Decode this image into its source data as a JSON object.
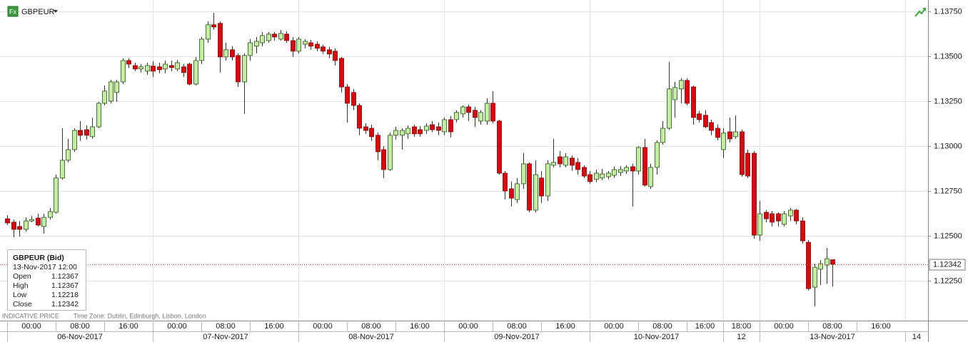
{
  "toolbar": {
    "icon": "Fx",
    "symbol": "GBPEUR"
  },
  "tooltip": {
    "title": "GBPEUR (Bid)",
    "time": "13-Nov-2017 12:00",
    "labels": [
      "Open",
      "High",
      "Low",
      "Close"
    ]
  },
  "footer": {
    "notice": "INDICATIVE PRICE",
    "timezone": "Time Zone: Dublin, Edinburgh, Lisbon, London"
  },
  "chart_data": {
    "type": "candlestick",
    "up_color": "#c4eca2",
    "up_edge": "#2f4f1a",
    "down_color": "#d20a11",
    "down_edge": "#7a0000",
    "last_line_color": "#d04040",
    "grid": true,
    "ylim": [
      1.12028,
      1.13813
    ],
    "yticks": [
      {
        "value": 1.1225,
        "label": "1.12250"
      },
      {
        "value": 1.125,
        "label": "1.12500"
      },
      {
        "value": 1.1275,
        "label": "1.12750"
      },
      {
        "value": 1.13,
        "label": "1.13000"
      },
      {
        "value": 1.1325,
        "label": "1.13250"
      },
      {
        "value": 1.135,
        "label": "1.13500"
      },
      {
        "value": 1.1375,
        "label": "1.13750"
      }
    ],
    "xticks": [
      {
        "value": 0,
        "label": "00:00"
      },
      {
        "value": 8,
        "label": "08:00"
      },
      {
        "value": 16,
        "label": "16:00"
      },
      {
        "value": 24,
        "label": "00:00"
      },
      {
        "value": 32,
        "label": "08:00"
      },
      {
        "value": 40,
        "label": "16:00"
      },
      {
        "value": 48,
        "label": "00:00"
      },
      {
        "value": 56,
        "label": "08:00"
      },
      {
        "value": 64,
        "label": "16:00"
      },
      {
        "value": 72,
        "label": "00:00"
      },
      {
        "value": 80,
        "label": "08:00"
      },
      {
        "value": 88,
        "label": "16:00"
      },
      {
        "value": 96,
        "label": "00:00"
      },
      {
        "value": 104,
        "label": "08:00"
      },
      {
        "value": 112,
        "label": "16:00"
      },
      {
        "value": 118,
        "label": "18:00"
      },
      {
        "value": 124,
        "label": "00:00"
      },
      {
        "value": 132,
        "label": "08:00"
      },
      {
        "value": 140,
        "label": "16:00"
      }
    ],
    "date_ticks": [
      {
        "value": 0,
        "label": "06-Nov-2017"
      },
      {
        "value": 24,
        "label": "07-Nov-2017"
      },
      {
        "value": 48,
        "label": "08-Nov-2017"
      },
      {
        "value": 72,
        "label": "09-Nov-2017"
      },
      {
        "value": 96,
        "label": "10-Nov-2017"
      },
      {
        "value": 118,
        "label": "12"
      },
      {
        "value": 124,
        "label": "13-Nov-2017"
      },
      {
        "value": 148,
        "label": "14"
      }
    ],
    "open": [
      1.12595,
      1.12576,
      1.12552,
      1.12536,
      1.12583,
      1.12599,
      1.12552,
      1.12603,
      1.12631,
      1.12822,
      1.12921,
      1.1298,
      1.13087,
      1.13091,
      1.13052,
      1.13107,
      1.13238,
      1.1325,
      1.13298,
      1.13357,
      1.13476,
      1.13448,
      1.13429,
      1.13417,
      1.13445,
      1.13441,
      1.13429,
      1.13448,
      1.13429,
      1.13441,
      1.13456,
      1.13345,
      1.13476,
      1.13595,
      1.13675,
      1.13683,
      1.13496,
      1.13536,
      1.13504,
      1.13357,
      1.13504,
      1.13556,
      1.13575,
      1.13587,
      1.13623,
      1.13595,
      1.13623,
      1.13587,
      1.13528,
      1.13567,
      1.13575,
      1.13567,
      1.13552,
      1.13536,
      1.13528,
      1.13488,
      1.13329,
      1.13298,
      1.13226,
      1.13107,
      1.13099,
      1.1306,
      1.1298,
      1.12869,
      1.1306,
      1.1306,
      1.13068,
      1.13107,
      1.13091,
      1.13087,
      1.13119,
      1.13107,
      1.13079,
      1.13147,
      1.13147,
      1.13179,
      1.13218,
      1.13199,
      1.13139,
      1.13139,
      1.13238,
      1.13139,
      1.12849,
      1.12762,
      1.12702,
      1.1279,
      1.12901,
      1.12643,
      1.12822,
      1.12722,
      1.12893,
      1.1294,
      1.12893,
      1.12933,
      1.12909,
      1.12881,
      1.12841,
      1.12814,
      1.12822,
      1.12829,
      1.12837,
      1.12853,
      1.12861,
      1.12885,
      1.12861,
      1.12992,
      1.12774,
      1.12881,
      1.1302,
      1.13099,
      1.13258,
      1.13318,
      1.13365,
      1.13329,
      1.13179,
      1.13171,
      1.13131,
      1.13099,
      1.1298,
      1.13079,
      1.13052,
      1.13079,
      1.1296,
      1.1296,
      1.12504,
      1.12631,
      1.12623,
      1.12623,
      1.12564,
      1.12611,
      1.12643,
      1.12583,
      1.12464,
      1.12214,
      1.12314,
      1.12337,
      1.12367
    ],
    "high": [
      1.12615,
      1.12591,
      1.12583,
      1.12603,
      1.12611,
      1.12623,
      1.12623,
      1.12655,
      1.12841,
      1.13099,
      1.1304,
      1.13099,
      1.13139,
      1.13115,
      1.13159,
      1.13246,
      1.13337,
      1.13369,
      1.13369,
      1.13488,
      1.13488,
      1.13464,
      1.13456,
      1.13464,
      1.13472,
      1.13464,
      1.13476,
      1.13476,
      1.1348,
      1.13456,
      1.13464,
      1.13496,
      1.13607,
      1.13694,
      1.13742,
      1.13694,
      1.13575,
      1.13556,
      1.13516,
      1.13516,
      1.13595,
      1.13607,
      1.13635,
      1.13635,
      1.13635,
      1.13647,
      1.13639,
      1.13607,
      1.13607,
      1.13595,
      1.13591,
      1.13583,
      1.13564,
      1.13552,
      1.13544,
      1.13496,
      1.13345,
      1.13318,
      1.13238,
      1.13127,
      1.13119,
      1.13075,
      1.13,
      1.13075,
      1.13107,
      1.13099,
      1.13115,
      1.13119,
      1.13111,
      1.13127,
      1.13139,
      1.13131,
      1.13159,
      1.13167,
      1.13199,
      1.13226,
      1.1323,
      1.13218,
      1.13199,
      1.13266,
      1.13306,
      1.13147,
      1.12861,
      1.12802,
      1.12822,
      1.1296,
      1.12909,
      1.12921,
      1.12861,
      1.12921,
      1.1304,
      1.12972,
      1.1296,
      1.12948,
      1.12933,
      1.12893,
      1.12861,
      1.12869,
      1.12873,
      1.12861,
      1.12885,
      1.12889,
      1.12893,
      1.12901,
      1.13,
      1.1304,
      1.12901,
      1.13032,
      1.13139,
      1.13468,
      1.13357,
      1.13377,
      1.13377,
      1.13337,
      1.13195,
      1.13199,
      1.13147,
      1.13119,
      1.13099,
      1.13159,
      1.13171,
      1.13091,
      1.1298,
      1.12972,
      1.12694,
      1.12643,
      1.12639,
      1.12631,
      1.12639,
      1.12655,
      1.12651,
      1.12603,
      1.12476,
      1.12345,
      1.12365,
      1.12433,
      1.12367
    ],
    "low": [
      1.1256,
      1.12492,
      1.12496,
      1.12524,
      1.12576,
      1.12552,
      1.12512,
      1.12591,
      1.12623,
      1.12814,
      1.12909,
      1.12968,
      1.13028,
      1.13036,
      1.1304,
      1.13099,
      1.13226,
      1.13238,
      1.13246,
      1.13345,
      1.13433,
      1.13417,
      1.13409,
      1.13397,
      1.13385,
      1.13405,
      1.13405,
      1.13417,
      1.13417,
      1.13385,
      1.13337,
      1.13337,
      1.13456,
      1.13575,
      1.13647,
      1.13409,
      1.13476,
      1.13476,
      1.13329,
      1.13179,
      1.13476,
      1.13516,
      1.13556,
      1.13575,
      1.13587,
      1.13587,
      1.13575,
      1.13496,
      1.13516,
      1.13544,
      1.13536,
      1.13528,
      1.13512,
      1.13488,
      1.13448,
      1.13298,
      1.13131,
      1.13199,
      1.1306,
      1.13068,
      1.13028,
      1.12921,
      1.12822,
      1.12861,
      1.13036,
      1.1298,
      1.1304,
      1.13052,
      1.13052,
      1.13068,
      1.13079,
      1.1306,
      1.1306,
      1.13048,
      1.13131,
      1.13159,
      1.13139,
      1.13107,
      1.13119,
      1.13119,
      1.13127,
      1.12841,
      1.12702,
      1.12663,
      1.12683,
      1.12762,
      1.12631,
      1.12631,
      1.12683,
      1.12694,
      1.12881,
      1.12881,
      1.12881,
      1.12861,
      1.12841,
      1.12822,
      1.1279,
      1.12798,
      1.1281,
      1.12814,
      1.12822,
      1.12833,
      1.12845,
      1.12663,
      1.12841,
      1.12774,
      1.12762,
      1.12841,
      1.13008,
      1.13091,
      1.13159,
      1.13238,
      1.13226,
      1.13119,
      1.13131,
      1.13099,
      1.1306,
      1.13032,
      1.12933,
      1.1302,
      1.1304,
      1.12829,
      1.12822,
      1.12484,
      1.12472,
      1.12576,
      1.12552,
      1.12552,
      1.12552,
      1.12583,
      1.12564,
      1.12456,
      1.12195,
      1.12107,
      1.12226,
      1.12234,
      1.12218
    ],
    "close": [
      1.12572,
      1.12536,
      1.12536,
      1.12583,
      1.12591,
      1.1256,
      1.12603,
      1.12635,
      1.12822,
      1.12921,
      1.1298,
      1.13087,
      1.1306,
      1.1306,
      1.13107,
      1.13238,
      1.13306,
      1.13357,
      1.13357,
      1.13476,
      1.13456,
      1.13429,
      1.13441,
      1.13448,
      1.13417,
      1.13425,
      1.13456,
      1.13437,
      1.13464,
      1.13409,
      1.13345,
      1.13476,
      1.13595,
      1.13675,
      1.13663,
      1.13496,
      1.13536,
      1.13496,
      1.13357,
      1.13504,
      1.13575,
      1.13583,
      1.13615,
      1.13623,
      1.13607,
      1.13627,
      1.13587,
      1.13528,
      1.13595,
      1.13583,
      1.13556,
      1.13544,
      1.13528,
      1.13512,
      1.13476,
      1.13329,
      1.13238,
      1.13226,
      1.13099,
      1.13087,
      1.13052,
      1.12968,
      1.12869,
      1.1306,
      1.13087,
      1.13087,
      1.13099,
      1.13068,
      1.13068,
      1.13111,
      1.13091,
      1.13087,
      1.13147,
      1.13079,
      1.13187,
      1.13218,
      1.13187,
      1.13159,
      1.13187,
      1.13238,
      1.13139,
      1.12849,
      1.1275,
      1.1271,
      1.1279,
      1.12901,
      1.12643,
      1.12841,
      1.12722,
      1.12901,
      1.12909,
      1.12901,
      1.1294,
      1.12893,
      1.12869,
      1.12833,
      1.12802,
      1.12849,
      1.12845,
      1.12849,
      1.12869,
      1.12869,
      1.12881,
      1.12861,
      1.12992,
      1.12782,
      1.12881,
      1.1302,
      1.13099,
      1.13318,
      1.13326,
      1.13365,
      1.13238,
      1.13159,
      1.13147,
      1.13107,
      1.13087,
      1.13048,
      1.13072,
      1.1304,
      1.13079,
      1.12841,
      1.12833,
      1.12504,
      1.12623,
      1.12595,
      1.12576,
      1.12583,
      1.12623,
      1.12643,
      1.12583,
      1.12472,
      1.12206,
      1.12325,
      1.12345,
      1.12373,
      1.12342
    ]
  }
}
